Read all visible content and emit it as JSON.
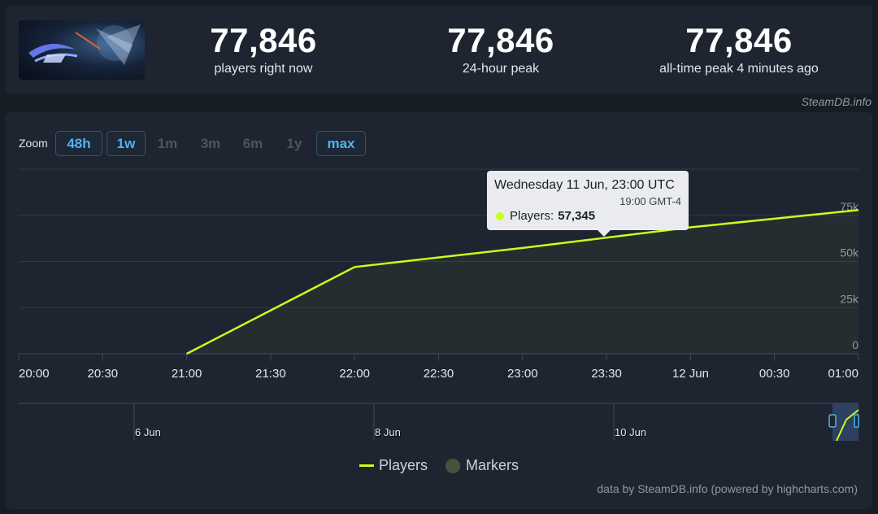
{
  "stats": {
    "current": {
      "value": "77,846",
      "label": "players right now"
    },
    "peak_24h": {
      "value": "77,846",
      "label": "24-hour peak"
    },
    "all_time": {
      "value": "77,846",
      "label": "all-time peak 4 minutes ago"
    }
  },
  "credit_top": "SteamDB.info",
  "zoom": {
    "label": "Zoom",
    "buttons": [
      {
        "label": "48h",
        "active": true
      },
      {
        "label": "1w",
        "active": true
      },
      {
        "label": "1m",
        "active": false
      },
      {
        "label": "3m",
        "active": false
      },
      {
        "label": "6m",
        "active": false
      },
      {
        "label": "1y",
        "active": false
      },
      {
        "label": "max",
        "active": true
      }
    ]
  },
  "tooltip": {
    "date": "Wednesday 11 Jun, 23:00 UTC",
    "local": "19:00 GMT-4",
    "series": "Players:",
    "value": "57,345"
  },
  "legend": {
    "players": "Players",
    "markers": "Markers"
  },
  "credit_bottom": "data by SteamDB.info (powered by highcharts.com)",
  "chart_data": {
    "type": "line",
    "title": "",
    "xlabel": "",
    "ylabel": "",
    "x_ticks": [
      "20:00",
      "20:30",
      "21:00",
      "21:30",
      "22:00",
      "22:30",
      "23:00",
      "23:30",
      "12 Jun",
      "00:30",
      "01:00"
    ],
    "y_ticks": [
      "0",
      "25k",
      "50k",
      "75k"
    ],
    "ylim": [
      0,
      100000
    ],
    "x_range_hours": [
      0,
      5
    ],
    "series": [
      {
        "name": "Players",
        "color": "#c8ff1c",
        "x_hours": [
          1.0,
          2.0,
          3.0,
          4.0,
          5.0
        ],
        "values": [
          0,
          47000,
          57345,
          68500,
          77846
        ]
      }
    ],
    "navigator": {
      "labels": [
        "6 Jun",
        "8 Jun",
        "10 Jun"
      ]
    },
    "grid": true,
    "legend_position": "bottom-center"
  }
}
